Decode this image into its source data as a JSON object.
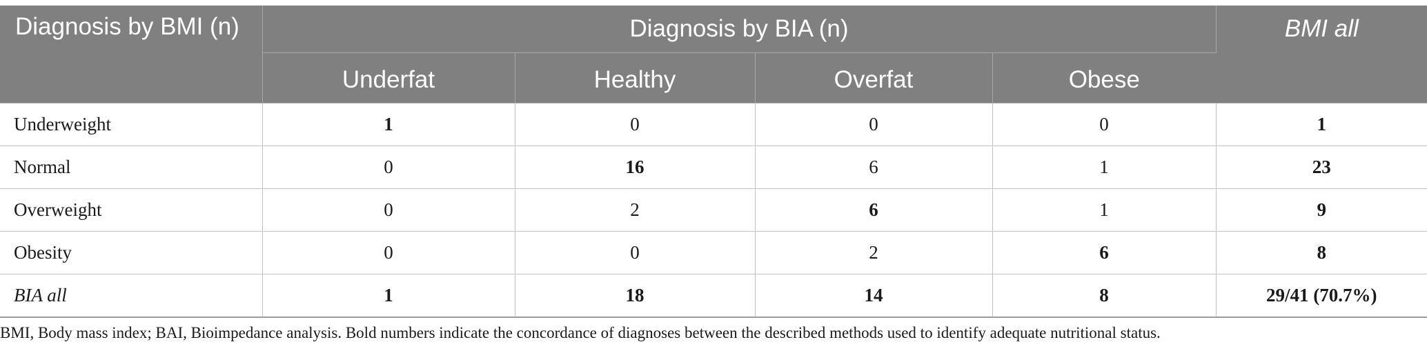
{
  "table": {
    "row_header_label": "Diagnosis by BMI (n)",
    "group_header_label": "Diagnosis by BIA (n)",
    "total_column_label": "BMI all",
    "columns": [
      "Underfat",
      "Healthy",
      "Overfat",
      "Obese"
    ],
    "rows": [
      {
        "label": "Underweight",
        "cells": [
          "1",
          "0",
          "0",
          "0"
        ],
        "total": "1"
      },
      {
        "label": "Normal",
        "cells": [
          "0",
          "16",
          "6",
          "1"
        ],
        "total": "23"
      },
      {
        "label": "Overweight",
        "cells": [
          "0",
          "2",
          "6",
          "1"
        ],
        "total": "9"
      },
      {
        "label": "Obesity",
        "cells": [
          "0",
          "0",
          "2",
          "6"
        ],
        "total": "8"
      },
      {
        "label": "BIA all",
        "cells": [
          "1",
          "18",
          "14",
          "8"
        ],
        "total": "29/41 (70.7%)"
      }
    ]
  },
  "footnote": "BMI, Body mass index; BAI, Bioimpedance analysis. Bold numbers indicate the concordance of diagnoses between the described methods used to identify adequate nutritional status.",
  "colors": {
    "header_background": "#808080",
    "header_text": "#ffffff",
    "body_text": "#1a1a1a",
    "grid_line": "#c4c4c4"
  }
}
